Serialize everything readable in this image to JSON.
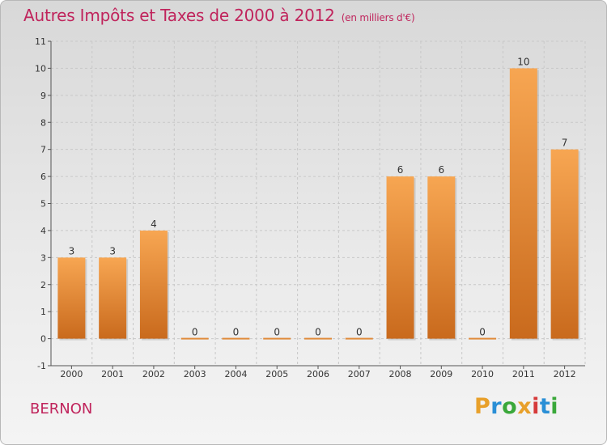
{
  "title": "Autres Impôts et Taxes de 2000 à 2012",
  "unit": "(en milliers d'€)",
  "commune": "BERNON",
  "logo": {
    "letters": [
      "P",
      "r",
      "o",
      "x",
      "i",
      "t",
      "i"
    ],
    "colors": [
      "#e8a02a",
      "#2a8fd6",
      "#3aa83a",
      "#e8a02a",
      "#d63a3a",
      "#2a8fd6",
      "#3aa83a"
    ]
  },
  "colors": {
    "bar": "#f0963c",
    "bar_dark": "#c8691c",
    "title": "#c0245c"
  },
  "chart_data": {
    "type": "bar",
    "title": "Autres Impôts et Taxes de 2000 à 2012",
    "xlabel": "",
    "ylabel": "",
    "categories": [
      "2000",
      "2001",
      "2002",
      "2003",
      "2004",
      "2005",
      "2006",
      "2007",
      "2008",
      "2009",
      "2010",
      "2011",
      "2012"
    ],
    "values": [
      3,
      3,
      4,
      0,
      0,
      0,
      0,
      0,
      6,
      6,
      0,
      10,
      7
    ],
    "value_labels": [
      "3",
      "3",
      "4",
      "0",
      "0",
      "0",
      "0",
      "0",
      "6",
      "6",
      "0",
      "10",
      "7"
    ],
    "ylim": [
      -1,
      11
    ],
    "yticks": [
      -1,
      0,
      1,
      2,
      3,
      4,
      5,
      6,
      7,
      8,
      9,
      10,
      11
    ],
    "ytick_labels": [
      "-1",
      "0",
      "1",
      "2",
      "3",
      "4",
      "5",
      "6",
      "7",
      "8",
      "9",
      "10",
      "11"
    ],
    "grid": true,
    "legend": "none"
  }
}
